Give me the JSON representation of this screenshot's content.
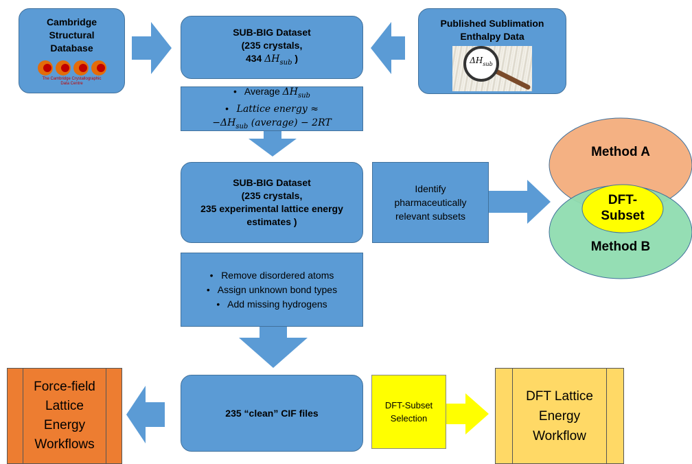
{
  "csd": {
    "title_lines": [
      "Cambridge",
      "Structural",
      "Database"
    ],
    "logo_caption": [
      "The Cambridge Crystallographic",
      "Data Centre"
    ]
  },
  "dataset1": {
    "line1": "SUB-BIG Dataset",
    "line2": "(235 crystals,",
    "line3_pre": "434 ",
    "line3_symbol": "ΔH",
    "line3_sub": "sub",
    "line3_post": " )"
  },
  "published": {
    "title_lines": [
      "Published Sublimation",
      "Enthalpy Data"
    ],
    "magnifier_symbol": "ΔH",
    "magnifier_sub": "sub"
  },
  "step1": {
    "bullet": "•",
    "item1_pre": "Average ",
    "item1_symbol": "ΔH",
    "item1_sub": "sub",
    "item2": "Lattice energy ≈",
    "item3_pre": "−ΔH",
    "item3_sub": "sub",
    "item3_post": " (average) − 2RT"
  },
  "dataset2": {
    "line1": "SUB-BIG Dataset",
    "line2": "(235 crystals,",
    "line3": "235 experimental lattice energy",
    "line4": "estimates )"
  },
  "identify": {
    "lines": [
      "Identify",
      "pharmaceutically",
      "relevant subsets"
    ]
  },
  "venn": {
    "method_a": "Method A",
    "method_b": "Method B",
    "dft_lines": [
      "DFT-",
      "Subset"
    ],
    "colors": {
      "method_a": "#f4b183",
      "method_b": "#8fdcb0",
      "dft": "#ffff00"
    }
  },
  "step2": {
    "bullet": "•",
    "items": [
      "Remove disordered atoms",
      "Assign unknown bond types",
      "Add missing hydrogens"
    ]
  },
  "clean": {
    "label": "235 “clean” CIF files"
  },
  "forcefield": {
    "lines": [
      "Force-field",
      "Lattice",
      "Energy",
      "Workflows"
    ],
    "color": "#ed7d31"
  },
  "dft_select": {
    "lines": [
      "DFT-Subset",
      "Selection"
    ],
    "color": "#ffff00"
  },
  "dft_workflow": {
    "lines": [
      "DFT Lattice",
      "Energy",
      "Workflow"
    ],
    "color": "#ffd966"
  },
  "colors": {
    "box": "#5b9bd5",
    "box_border": "#41719c"
  }
}
